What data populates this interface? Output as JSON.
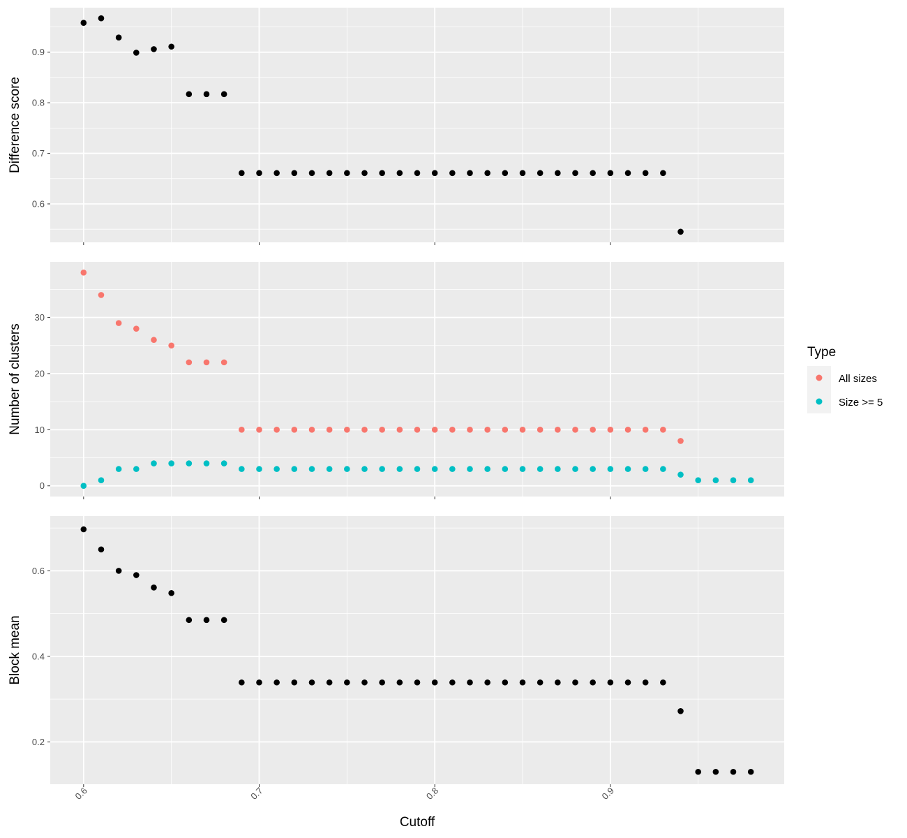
{
  "chart_data": {
    "type": "scatter",
    "x_label": "Cutoff",
    "x_ticks": [
      0.6,
      0.7,
      0.8,
      0.9
    ],
    "x_tick_labels": [
      "0.6",
      "0.7",
      "0.8",
      "0.9"
    ],
    "xlim": [
      0.581,
      0.999
    ],
    "x": [
      0.6,
      0.61,
      0.62,
      0.63,
      0.64,
      0.65,
      0.66,
      0.67,
      0.68,
      0.69,
      0.7,
      0.71,
      0.72,
      0.73,
      0.74,
      0.75,
      0.76,
      0.77,
      0.78,
      0.79,
      0.8,
      0.81,
      0.82,
      0.83,
      0.84,
      0.85,
      0.86,
      0.87,
      0.88,
      0.89,
      0.9,
      0.91,
      0.92,
      0.93,
      0.94,
      0.95,
      0.96,
      0.97,
      0.98
    ],
    "grid": true,
    "colors": {
      "panel_bg": "#ebebeb",
      "grid": "#ffffff",
      "point": "#000000",
      "all_sizes": "#f8766d",
      "size_ge_5": "#00bfc4"
    },
    "legend": {
      "title": "Type",
      "position": "right",
      "entries": [
        {
          "label": "All sizes",
          "color": "#f8766d"
        },
        {
          "label": "Size >= 5",
          "color": "#00bfc4"
        }
      ]
    },
    "panels": [
      {
        "ylabel": "Difference score",
        "ylim": [
          0.524,
          0.988
        ],
        "y_ticks": [
          0.6,
          0.7,
          0.8,
          0.9
        ],
        "y_tick_labels": [
          "0.6",
          "0.7",
          "0.8",
          "0.9"
        ],
        "series": [
          {
            "color": "#000000",
            "values": [
              0.958,
              0.967,
              0.929,
              0.899,
              0.906,
              0.911,
              0.817,
              0.817,
              0.817,
              0.661,
              0.661,
              0.661,
              0.661,
              0.661,
              0.661,
              0.661,
              0.661,
              0.661,
              0.661,
              0.661,
              0.661,
              0.661,
              0.661,
              0.661,
              0.661,
              0.661,
              0.661,
              0.661,
              0.661,
              0.661,
              0.661,
              0.661,
              0.661,
              0.661,
              0.545,
              null,
              null,
              null,
              null
            ]
          }
        ]
      },
      {
        "ylabel": "Number of clusters",
        "ylim": [
          -1.9,
          39.9
        ],
        "y_ticks": [
          0,
          10,
          20,
          30
        ],
        "y_tick_labels": [
          "0",
          "10",
          "20",
          "30"
        ],
        "series": [
          {
            "name": "All sizes",
            "color": "#f8766d",
            "values": [
              38,
              34,
              29,
              28,
              26,
              25,
              22,
              22,
              22,
              10,
              10,
              10,
              10,
              10,
              10,
              10,
              10,
              10,
              10,
              10,
              10,
              10,
              10,
              10,
              10,
              10,
              10,
              10,
              10,
              10,
              10,
              10,
              10,
              10,
              8,
              null,
              null,
              null,
              null
            ]
          },
          {
            "name": "Size >= 5",
            "color": "#00bfc4",
            "values": [
              0,
              1,
              3,
              3,
              4,
              4,
              4,
              4,
              4,
              3,
              3,
              3,
              3,
              3,
              3,
              3,
              3,
              3,
              3,
              3,
              3,
              3,
              3,
              3,
              3,
              3,
              3,
              3,
              3,
              3,
              3,
              3,
              3,
              3,
              2,
              1,
              1,
              1,
              1
            ]
          }
        ]
      },
      {
        "ylabel": "Block mean",
        "ylim": [
          0.101,
          0.728
        ],
        "y_ticks": [
          0.2,
          0.4,
          0.6
        ],
        "y_tick_labels": [
          "0.2",
          "0.4",
          "0.6"
        ],
        "series": [
          {
            "color": "#000000",
            "values": [
              0.697,
              0.65,
              0.6,
              0.59,
              0.561,
              0.548,
              0.485,
              0.485,
              0.485,
              0.339,
              0.339,
              0.339,
              0.339,
              0.339,
              0.339,
              0.339,
              0.339,
              0.339,
              0.339,
              0.339,
              0.339,
              0.339,
              0.339,
              0.339,
              0.339,
              0.339,
              0.339,
              0.339,
              0.339,
              0.339,
              0.339,
              0.339,
              0.339,
              0.339,
              0.272,
              0.13,
              0.13,
              0.13,
              0.13
            ]
          }
        ]
      }
    ]
  }
}
